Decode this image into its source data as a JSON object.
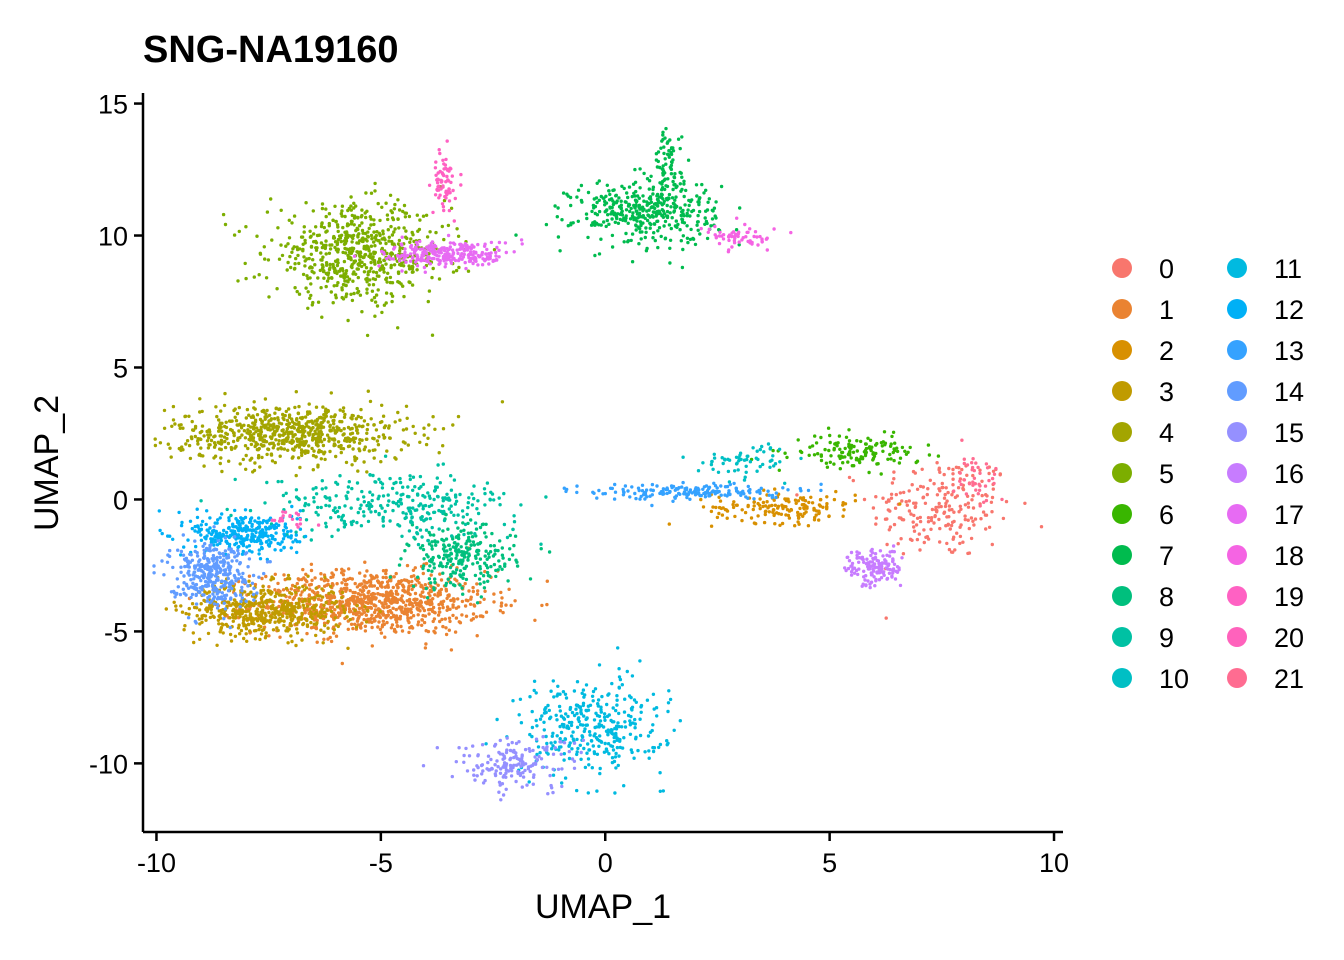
{
  "chart_data": {
    "type": "scatter",
    "title": "SNG-NA19160",
    "xlabel": "UMAP_1",
    "ylabel": "UMAP_2",
    "xlim": [
      -10.3,
      10.2
    ],
    "ylim": [
      -12.6,
      15.4
    ],
    "xticks": [
      -10,
      -5,
      0,
      5,
      10
    ],
    "yticks": [
      -10,
      -5,
      0,
      5,
      10,
      15
    ],
    "xtick_labels": [
      "-10",
      "-5",
      "0",
      "5",
      "10"
    ],
    "ytick_labels": [
      "-10",
      "-5",
      "0",
      "5",
      "10",
      "15"
    ],
    "legend_position": "right",
    "legend_columns": 2,
    "series": [
      {
        "name": "0",
        "color": "#F8766D",
        "clusters": [
          {
            "cx": 7.5,
            "cy": -0.3,
            "sx": 0.8,
            "sy": 1.0,
            "n": 220
          }
        ]
      },
      {
        "name": "1",
        "color": "#EA8331",
        "clusters": [
          {
            "cx": -5.2,
            "cy": -3.9,
            "sx": 1.3,
            "sy": 0.6,
            "n": 900
          }
        ]
      },
      {
        "name": "2",
        "color": "#D89000",
        "clusters": [
          {
            "cx": 4.0,
            "cy": -0.3,
            "sx": 0.8,
            "sy": 0.3,
            "n": 160
          }
        ]
      },
      {
        "name": "3",
        "color": "#C09B00",
        "clusters": [
          {
            "cx": -7.6,
            "cy": -4.2,
            "sx": 0.9,
            "sy": 0.5,
            "n": 500
          }
        ]
      },
      {
        "name": "4",
        "color": "#A3A500",
        "clusters": [
          {
            "cx": -7.0,
            "cy": 2.5,
            "sx": 1.3,
            "sy": 0.55,
            "n": 700
          }
        ]
      },
      {
        "name": "5",
        "color": "#7CAE00",
        "clusters": [
          {
            "cx": -5.5,
            "cy": 9.3,
            "sx": 1.0,
            "sy": 0.9,
            "n": 650
          }
        ]
      },
      {
        "name": "6",
        "color": "#39B600",
        "clusters": [
          {
            "cx": 5.6,
            "cy": 1.8,
            "sx": 0.7,
            "sy": 0.3,
            "n": 140
          }
        ]
      },
      {
        "name": "7",
        "color": "#00BB4E",
        "clusters": [
          {
            "cx": 0.9,
            "cy": 10.9,
            "sx": 0.8,
            "sy": 0.6,
            "n": 400
          },
          {
            "cx": 1.4,
            "cy": 12.6,
            "sx": 0.15,
            "sy": 0.7,
            "n": 80
          }
        ]
      },
      {
        "name": "8",
        "color": "#00BF7D",
        "clusters": [
          {
            "cx": -3.2,
            "cy": -2.2,
            "sx": 0.6,
            "sy": 0.6,
            "n": 260
          }
        ]
      },
      {
        "name": "9",
        "color": "#00C1A3",
        "clusters": [
          {
            "cx": -4.7,
            "cy": -0.2,
            "sx": 1.4,
            "sy": 0.6,
            "n": 300
          }
        ]
      },
      {
        "name": "10",
        "color": "#00BFC4",
        "clusters": [
          {
            "cx": 3.2,
            "cy": 1.5,
            "sx": 0.5,
            "sy": 0.3,
            "n": 60
          }
        ]
      },
      {
        "name": "11",
        "color": "#00BAE0",
        "clusters": [
          {
            "cx": -0.3,
            "cy": -8.6,
            "sx": 0.8,
            "sy": 0.9,
            "n": 350
          }
        ]
      },
      {
        "name": "12",
        "color": "#00B0F6",
        "clusters": [
          {
            "cx": -8.0,
            "cy": -1.3,
            "sx": 0.6,
            "sy": 0.4,
            "n": 300
          }
        ]
      },
      {
        "name": "13",
        "color": "#35A2FF",
        "clusters": [
          {
            "cx": 1.8,
            "cy": 0.3,
            "sx": 1.1,
            "sy": 0.15,
            "n": 180
          }
        ]
      },
      {
        "name": "14",
        "color": "#619CFF",
        "clusters": [
          {
            "cx": -8.8,
            "cy": -2.8,
            "sx": 0.45,
            "sy": 0.6,
            "n": 350
          }
        ]
      },
      {
        "name": "15",
        "color": "#9590FF",
        "clusters": [
          {
            "cx": -2.0,
            "cy": -10.0,
            "sx": 0.7,
            "sy": 0.5,
            "n": 170
          }
        ]
      },
      {
        "name": "16",
        "color": "#C77CFF",
        "clusters": [
          {
            "cx": 6.0,
            "cy": -2.6,
            "sx": 0.3,
            "sy": 0.35,
            "n": 140
          }
        ]
      },
      {
        "name": "17",
        "color": "#E76BF3",
        "clusters": [
          {
            "cx": -3.5,
            "cy": 9.3,
            "sx": 0.7,
            "sy": 0.25,
            "n": 260
          }
        ]
      },
      {
        "name": "18",
        "color": "#F564E3",
        "clusters": [
          {
            "cx": 3.1,
            "cy": 9.9,
            "sx": 0.4,
            "sy": 0.2,
            "n": 60
          }
        ]
      },
      {
        "name": "19",
        "color": "#FF61C3",
        "clusters": [
          {
            "cx": -3.6,
            "cy": 12.0,
            "sx": 0.12,
            "sy": 0.6,
            "n": 70
          }
        ]
      },
      {
        "name": "20",
        "color": "#FF62BC",
        "clusters": [
          {
            "cx": -7.0,
            "cy": -0.8,
            "sx": 0.25,
            "sy": 0.2,
            "n": 20
          }
        ]
      },
      {
        "name": "21",
        "color": "#FF6C91",
        "clusters": [
          {
            "cx": 8.2,
            "cy": 0.8,
            "sx": 0.3,
            "sy": 0.5,
            "n": 40
          }
        ]
      }
    ]
  }
}
